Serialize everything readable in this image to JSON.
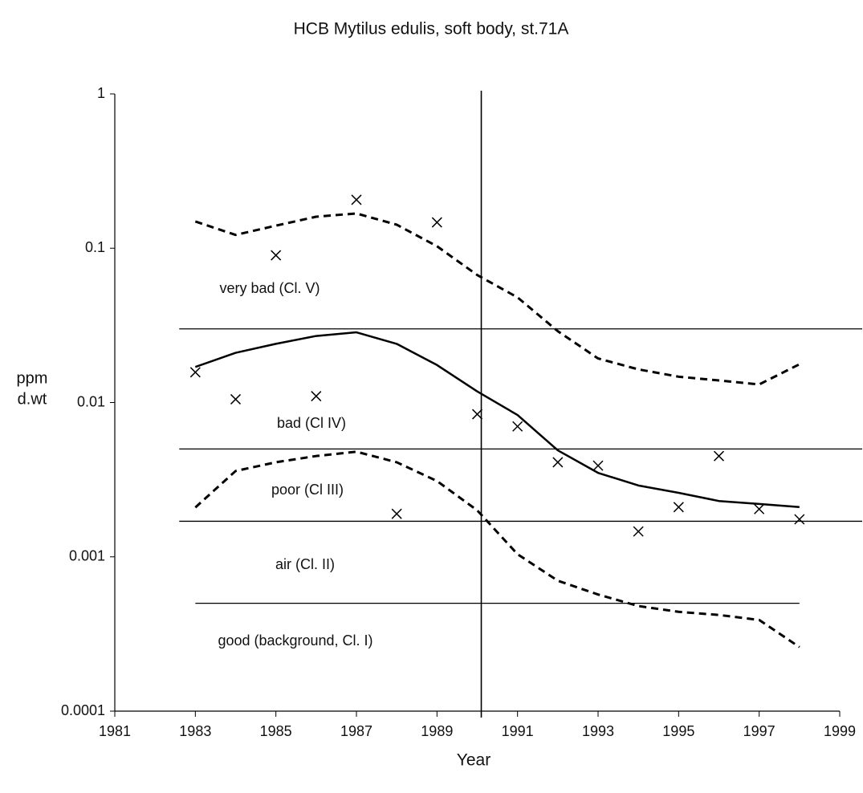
{
  "chart_data": {
    "type": "line",
    "title": "HCB Mytilus edulis, soft body, st.71A",
    "xlabel": "Year",
    "ylabel": [
      "ppm",
      "d.wt"
    ],
    "log_y": true,
    "xlim": [
      1981,
      1999
    ],
    "xticks": [
      1981,
      1983,
      1985,
      1987,
      1989,
      1991,
      1993,
      1995,
      1997,
      1999
    ],
    "ylim": [
      0.0001,
      1
    ],
    "yticks": [
      0.0001,
      0.001,
      0.01,
      0.1,
      1
    ],
    "x": [
      1983,
      1984,
      1985,
      1986,
      1987,
      1988,
      1989,
      1990,
      1991,
      1992,
      1993,
      1994,
      1995,
      1996,
      1997,
      1998
    ],
    "series": [
      {
        "style": "cross",
        "color": "#000000",
        "values": [
          0.0157,
          0.0105,
          0.09,
          0.011,
          0.206,
          0.0019,
          0.147,
          0.0084,
          0.007,
          0.0041,
          0.0039,
          0.00146,
          0.0021,
          0.0045,
          0.00204,
          0.00175
        ]
      },
      {
        "style": "solid",
        "color": "#000000",
        "values": [
          0.017,
          0.021,
          0.024,
          0.027,
          0.0285,
          0.024,
          0.0175,
          0.0118,
          0.0083,
          0.0049,
          0.0035,
          0.0029,
          0.0026,
          0.0023,
          0.0022,
          0.0021
        ]
      },
      {
        "style": "dashed",
        "color": "#000000",
        "values": [
          0.149,
          0.122,
          0.14,
          0.16,
          0.168,
          0.142,
          0.103,
          0.067,
          0.048,
          0.029,
          0.0193,
          0.0164,
          0.0147,
          0.0139,
          0.0131,
          0.0177
        ]
      },
      {
        "style": "dashed",
        "color": "#000000",
        "values": [
          0.00209,
          0.0036,
          0.0041,
          0.0045,
          0.0048,
          0.0041,
          0.0031,
          0.002,
          0.00104,
          0.0007,
          0.00057,
          0.00048,
          0.00044,
          0.00042,
          0.00039,
          0.00026
        ]
      }
    ],
    "class_limits": [
      0.03,
      0.005,
      0.0017,
      0.0005
    ],
    "vline_x": 1990.1,
    "class_labels": [
      "very bad (Cl. V)",
      "bad (Cl IV)",
      "poor (Cl III)",
      "air (Cl. II)",
      "good (background, Cl. I)"
    ]
  }
}
